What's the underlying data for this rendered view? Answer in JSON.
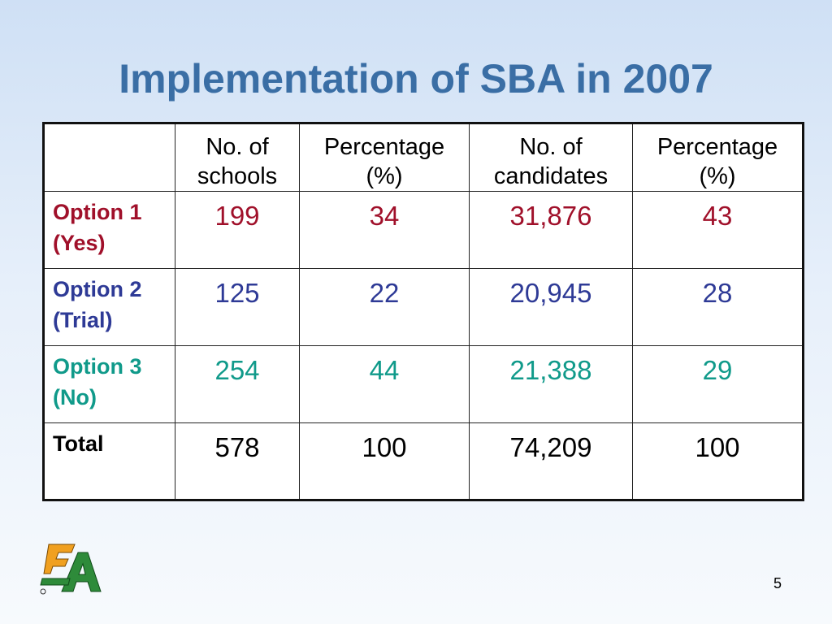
{
  "slide": {
    "title": "Implementation of SBA in 2007",
    "page_number": "5"
  },
  "table": {
    "headers": [
      {
        "line1": "",
        "line2": ""
      },
      {
        "line1": "No. of",
        "line2": "schools"
      },
      {
        "line1": "Percentage",
        "line2": "(%)"
      },
      {
        "line1": "No. of",
        "line2": "candidates"
      },
      {
        "line1": "Percentage",
        "line2": "(%)"
      }
    ],
    "rows": [
      {
        "label1": "Option 1",
        "label2": "(Yes)",
        "schools": "199",
        "schools_pct": "34",
        "candidates": "31,876",
        "candidates_pct": "43",
        "color": "#a0102a"
      },
      {
        "label1": "Option 2",
        "label2": "(Trial)",
        "schools": "125",
        "schools_pct": "22",
        "candidates": "20,945",
        "candidates_pct": "28",
        "color": "#2e3a96"
      },
      {
        "label1": "Option 3",
        "label2": "(No)",
        "schools": "254",
        "schools_pct": "44",
        "candidates": "21,388",
        "candidates_pct": "29",
        "color": "#109a8a"
      },
      {
        "label1": "Total",
        "label2": "",
        "schools": "578",
        "schools_pct": "100",
        "candidates": "74,209",
        "candidates_pct": "100",
        "color": "#000000"
      }
    ]
  },
  "logo": {
    "icon": "hkeaa-logo-icon",
    "colors": [
      "#f0a020",
      "#2e8b3a"
    ]
  }
}
